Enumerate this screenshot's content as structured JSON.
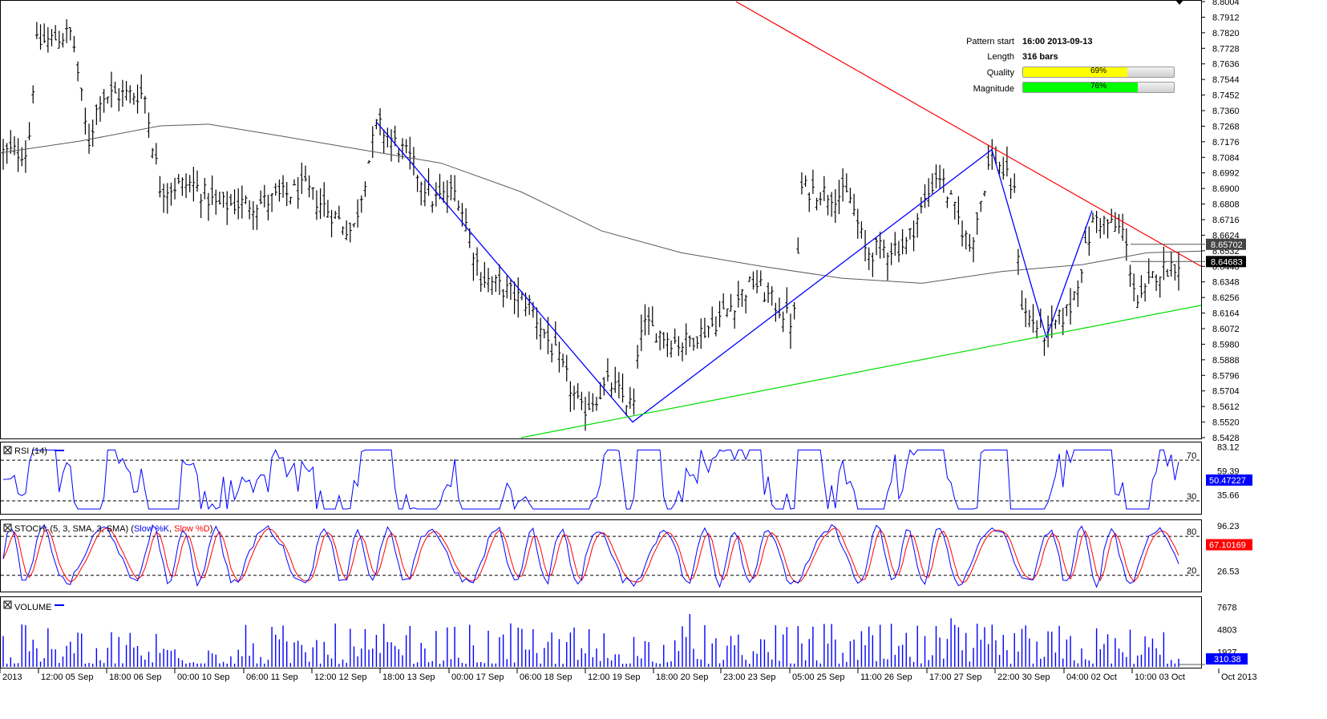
{
  "info": {
    "pattern_start_label": "Pattern start",
    "pattern_start_value": "16:00 2013-09-13",
    "length_label": "Length",
    "length_value": "316 bars",
    "quality_label": "Quality",
    "quality_text": "69%",
    "quality_value": 0.69,
    "magnitude_label": "Magnitude",
    "magnitude_text": "76%",
    "magnitude_value": 0.76,
    "quality_color": "#ffff00",
    "magnitude_color": "#00ff00"
  },
  "chart_data": [
    {
      "type": "ohlc",
      "title": "",
      "ylim": [
        8.5428,
        8.8004
      ],
      "y_ticks": [
        "8.8004",
        "8.7912",
        "8.7820",
        "8.7728",
        "8.7636",
        "8.7544",
        "8.7452",
        "8.7360",
        "8.7268",
        "8.7176",
        "8.7084",
        "8.6992",
        "8.6900",
        "8.6808",
        "8.6716",
        "8.6624",
        "8.6532",
        "8.6440",
        "8.6348",
        "8.6256",
        "8.6164",
        "8.6072",
        "8.5980",
        "8.5888",
        "8.5796",
        "8.5704",
        "8.5612",
        "8.5520",
        "8.5428"
      ],
      "x_ticks": [
        "2013",
        "12:00 05 Sep",
        "18:00 06 Sep",
        "00:00 10 Sep",
        "06:00 11 Sep",
        "12:00 12 Sep",
        "18:00 13 Sep",
        "00:00 17 Sep",
        "06:00 18 Sep",
        "12:00 19 Sep",
        "18:00 20 Sep",
        "23:00 23 Sep",
        "05:00 25 Sep",
        "11:00 26 Sep",
        "17:00 27 Sep",
        "22:00 30 Sep",
        "04:00 02 Oct",
        "10:00 03 Oct",
        "Oct 2013"
      ],
      "price_path": [
        [
          0,
          8.711
        ],
        [
          35,
          8.712
        ],
        [
          45,
          8.775
        ],
        [
          90,
          8.782
        ],
        [
          110,
          8.716
        ],
        [
          125,
          8.745
        ],
        [
          180,
          8.746
        ],
        [
          200,
          8.69
        ],
        [
          240,
          8.693
        ],
        [
          270,
          8.68
        ],
        [
          330,
          8.682
        ],
        [
          380,
          8.69
        ],
        [
          440,
          8.664
        ],
        [
          470,
          8.728
        ],
        [
          510,
          8.708
        ],
        [
          540,
          8.683
        ],
        [
          570,
          8.688
        ],
        [
          600,
          8.638
        ],
        [
          660,
          8.622
        ],
        [
          700,
          8.585
        ],
        [
          725,
          8.558
        ],
        [
          760,
          8.575
        ],
        [
          790,
          8.56
        ],
        [
          800,
          8.61
        ],
        [
          850,
          8.598
        ],
        [
          890,
          8.61
        ],
        [
          940,
          8.635
        ],
        [
          990,
          8.61
        ],
        [
          1000,
          8.69
        ],
        [
          1060,
          8.685
        ],
        [
          1080,
          8.652
        ],
        [
          1130,
          8.657
        ],
        [
          1170,
          8.7
        ],
        [
          1210,
          8.655
        ],
        [
          1237,
          8.712
        ],
        [
          1265,
          8.688
        ],
        [
          1275,
          8.618
        ],
        [
          1305,
          8.603
        ],
        [
          1335,
          8.62
        ],
        [
          1365,
          8.673
        ],
        [
          1400,
          8.665
        ],
        [
          1420,
          8.62
        ],
        [
          1440,
          8.64
        ],
        [
          1470,
          8.6468
        ]
      ],
      "latest_close": "8.64683",
      "ma_level": "8.65702",
      "ma_path": [
        [
          0,
          8.711
        ],
        [
          100,
          8.718
        ],
        [
          200,
          8.727
        ],
        [
          260,
          8.728
        ],
        [
          350,
          8.721
        ],
        [
          450,
          8.713
        ],
        [
          550,
          8.705
        ],
        [
          650,
          8.688
        ],
        [
          750,
          8.665
        ],
        [
          850,
          8.652
        ],
        [
          950,
          8.644
        ],
        [
          1050,
          8.637
        ],
        [
          1150,
          8.634
        ],
        [
          1250,
          8.641
        ],
        [
          1350,
          8.645
        ],
        [
          1430,
          8.652
        ],
        [
          1498,
          8.653
        ]
      ],
      "zigzag": [
        [
          8.729,
          0
        ],
        [
          8.552,
          1
        ],
        [
          8.713,
          2
        ],
        [
          8.602,
          3
        ],
        [
          8.677,
          4
        ]
      ],
      "resistance_line": [
        [
          8.8004,
          8.644
        ]
      ],
      "support_line": [
        [
          8.5428,
          8.621
        ]
      ]
    },
    {
      "type": "line",
      "title": "RSI (14)",
      "ylim": [
        17.3,
        87.4
      ],
      "levels": [
        70,
        30
      ],
      "y_ticks": [
        "83.12",
        "59.39",
        "35.66"
      ],
      "level_labels": [
        "70",
        "30"
      ],
      "last_value": "50.47227"
    },
    {
      "type": "line",
      "title": "STOCH: (5, 3, SMA, 3, SMA)",
      "series": [
        {
          "name": "Slow %K"
        },
        {
          "name": "Slow %D"
        }
      ],
      "ylim": [
        -5,
        104.8
      ],
      "levels": [
        80,
        20
      ],
      "y_ticks": [
        "96.23",
        "26.53"
      ],
      "level_labels": [
        "80",
        "20"
      ],
      "last_value": "67.10169"
    },
    {
      "type": "bar",
      "title": "VOLUME",
      "ylim": [
        0,
        8966
      ],
      "y_ticks": [
        "7678",
        "4803",
        "1927"
      ],
      "last_value": "310.38"
    }
  ],
  "colors": {
    "price_bars": "#000000",
    "ma": "#5a5a5a",
    "zigzag": "#0000ff",
    "resistance": "#ff0000",
    "support": "#00dd00",
    "rsi": "#0000ff",
    "stoch_k": "#0000ff",
    "stoch_d": "#ff0000",
    "volume": "#0000ff",
    "last_value_box": "#0000ff",
    "stoch_value_box": "#ff0000",
    "price_value_box": "#000000"
  }
}
